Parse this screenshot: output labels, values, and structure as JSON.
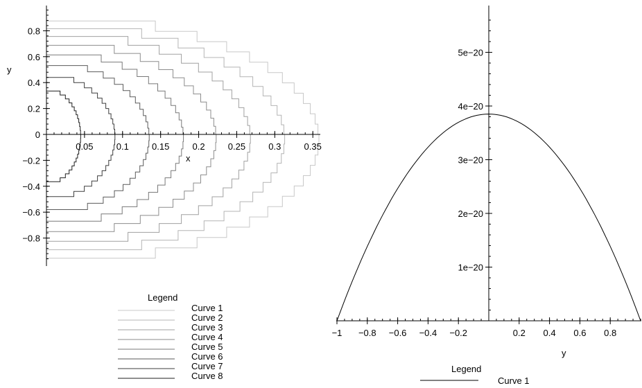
{
  "chart_data": [
    {
      "type": "line",
      "title": "",
      "xlabel": "x",
      "ylabel": "y",
      "xlim": [
        0,
        0.36
      ],
      "ylim": [
        -0.98,
        0.98
      ],
      "x_ticks": [
        "0.05",
        "0.1",
        "0.15",
        "0.2",
        "0.25",
        "0.3",
        "0.35"
      ],
      "x_tick_values": [
        0.05,
        0.1,
        0.15,
        0.2,
        0.25,
        0.3,
        0.35
      ],
      "y_ticks": [
        "0.8",
        "0.6",
        "0.4",
        "0.2",
        "0",
        "−0.2",
        "−0.4",
        "−0.6",
        "−0.8"
      ],
      "y_tick_values": [
        0.8,
        0.6,
        0.4,
        0.2,
        0,
        -0.2,
        -0.4,
        -0.6,
        -0.8
      ],
      "series_shape": "x ≈ a·sqrt(1 − y²/b²) with stair-step rendering",
      "series": [
        {
          "name": "Curve 1",
          "a": 0.358,
          "b": 0.955,
          "color": "#c8c8c8"
        },
        {
          "name": "Curve 2",
          "a": 0.313,
          "b": 0.89,
          "color": "#b4b4b4"
        },
        {
          "name": "Curve 3",
          "a": 0.268,
          "b": 0.825,
          "color": "#a0a0a0"
        },
        {
          "name": "Curve 4",
          "a": 0.223,
          "b": 0.75,
          "color": "#8c8c8c"
        },
        {
          "name": "Curve 5",
          "a": 0.18,
          "b": 0.67,
          "color": "#787878"
        },
        {
          "name": "Curve 6",
          "a": 0.135,
          "b": 0.58,
          "color": "#5a5a5a"
        },
        {
          "name": "Curve 7",
          "a": 0.09,
          "b": 0.48,
          "color": "#3c3c3c"
        },
        {
          "name": "Curve 8",
          "a": 0.045,
          "b": 0.365,
          "color": "#1e1e1e"
        }
      ],
      "legend_title": "Legend",
      "legend_position": "bottom"
    },
    {
      "type": "line",
      "title": "",
      "xlabel": "y",
      "ylabel": "",
      "xlim": [
        -1,
        1
      ],
      "ylim": [
        0,
        5.8e-20
      ],
      "x_ticks": [
        "−1",
        "−0.8",
        "−0.6",
        "−0.4",
        "−0.2",
        "0.2",
        "0.4",
        "0.6",
        "0.8"
      ],
      "x_tick_values": [
        -1,
        -0.8,
        -0.6,
        -0.4,
        -0.2,
        0.2,
        0.4,
        0.6,
        0.8
      ],
      "y_ticks": [
        "1e−20",
        "2e−20",
        "3e−20",
        "4e−20",
        "5e−20"
      ],
      "y_tick_values": [
        1e-20,
        2e-20,
        3e-20,
        4e-20,
        5e-20
      ],
      "series": [
        {
          "name": "Curve 1",
          "peak": 3.85e-20,
          "shape": "peak·(1 − y²)",
          "color": "#000000"
        }
      ],
      "legend_title": "Legend",
      "legend_position": "bottom"
    }
  ]
}
